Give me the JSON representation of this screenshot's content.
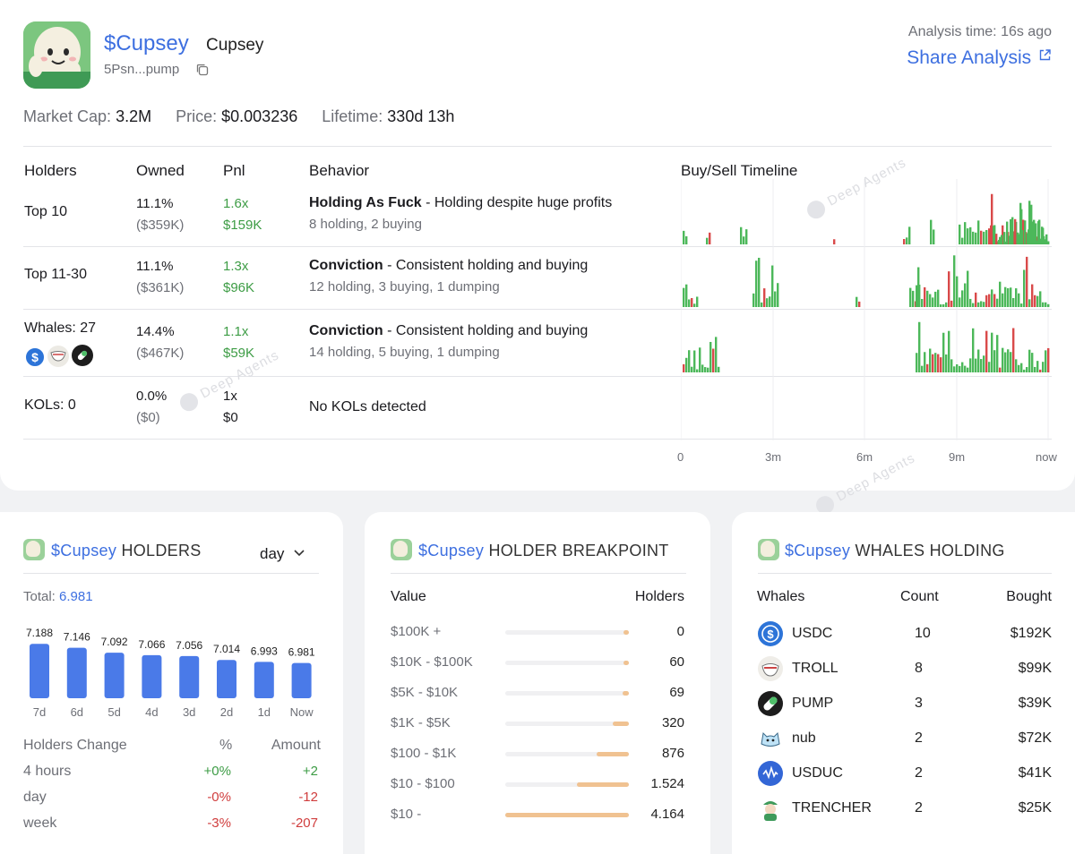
{
  "header": {
    "ticker": "$Cupsey",
    "name": "Cupsey",
    "address": "5Psn...pump",
    "analysis_label": "Analysis time: 16s ago",
    "share_label": "Share Analysis"
  },
  "stats": {
    "market_cap_label": "Market Cap:",
    "market_cap": "3.2M",
    "price_label": "Price:",
    "price": "$0.003236",
    "lifetime_label": "Lifetime:",
    "lifetime": "330d 13h"
  },
  "table": {
    "headers": [
      "Holders",
      "Owned",
      "Pnl",
      "Behavior",
      "Buy/Sell Timeline"
    ],
    "rows": [
      {
        "holders": "Top 10",
        "owned_pct": "11.1%",
        "owned_usd": "($359K)",
        "pnl_x": "1.6x",
        "pnl_usd": "$159K",
        "behavior_title": "Holding As Fuck",
        "behavior_desc": " - Holding despite huge profits",
        "behavior_sub": "8 holding, 2 buying"
      },
      {
        "holders": "Top 11-30",
        "owned_pct": "11.1%",
        "owned_usd": "($361K)",
        "pnl_x": "1.3x",
        "pnl_usd": "$96K",
        "behavior_title": "Conviction",
        "behavior_desc": " - Consistent holding and buying",
        "behavior_sub": "12 holding, 3 buying, 1 dumping"
      },
      {
        "holders": "Whales: 27",
        "owned_pct": "14.4%",
        "owned_usd": "($467K)",
        "pnl_x": "1.1x",
        "pnl_usd": "$59K",
        "behavior_title": "Conviction",
        "behavior_desc": " - Consistent holding and buying",
        "behavior_sub": "14 holding, 5 buying, 1 dumping"
      },
      {
        "holders": "KOLs: 0",
        "owned_pct": "0.0%",
        "owned_usd": "($0)",
        "pnl_x": "1x",
        "pnl_usd": "$0",
        "behavior_title": "",
        "behavior_desc": "No KOLs detected",
        "behavior_sub": ""
      }
    ],
    "timeline_ticks": [
      "0",
      "3m",
      "6m",
      "9m",
      "now"
    ]
  },
  "watermark": "Deep Agents",
  "holders_card": {
    "ticker": "$Cupsey",
    "title": " HOLDERS",
    "period": "day",
    "total_label": "Total:",
    "total": "6.981",
    "change_headers": [
      "Holders Change",
      "%",
      "Amount"
    ],
    "changes": [
      {
        "period": "4 hours",
        "pct": "+0%",
        "amount": "+2",
        "dir": "up"
      },
      {
        "period": "day",
        "pct": "-0%",
        "amount": "-12",
        "dir": "down"
      },
      {
        "period": "week",
        "pct": "-3%",
        "amount": "-207",
        "dir": "down"
      }
    ]
  },
  "breakpoint_card": {
    "ticker": "$Cupsey",
    "title": " HOLDER BREAKPOINT",
    "col_value": "Value",
    "col_holders": "Holders",
    "rows": [
      {
        "range": "$100K +",
        "holders": "0",
        "fill": 0.02
      },
      {
        "range": "$10K - $100K",
        "holders": "60",
        "fill": 0.04
      },
      {
        "range": "$5K - $10K",
        "holders": "69",
        "fill": 0.05
      },
      {
        "range": "$1K - $5K",
        "holders": "320",
        "fill": 0.13
      },
      {
        "range": "$100 - $1K",
        "holders": "876",
        "fill": 0.26
      },
      {
        "range": "$10 - $100",
        "holders": "1.524",
        "fill": 0.42
      },
      {
        "range": "$10 -",
        "holders": "4.164",
        "fill": 1.0
      }
    ]
  },
  "whales_card": {
    "ticker": "$Cupsey",
    "title": " WHALES HOLDING",
    "headers": [
      "Whales",
      "Count",
      "Bought"
    ],
    "rows": [
      {
        "name": "USDC",
        "count": "10",
        "bought": "$192K",
        "icon": "usdc-icon"
      },
      {
        "name": "TROLL",
        "count": "8",
        "bought": "$99K",
        "icon": "troll-icon"
      },
      {
        "name": "PUMP",
        "count": "3",
        "bought": "$39K",
        "icon": "pump-icon"
      },
      {
        "name": "nub",
        "count": "2",
        "bought": "$72K",
        "icon": "nub-icon"
      },
      {
        "name": "USDUC",
        "count": "2",
        "bought": "$41K",
        "icon": "usduc-icon"
      },
      {
        "name": "TRENCHER",
        "count": "2",
        "bought": "$25K",
        "icon": "trencher-icon"
      }
    ]
  },
  "colors": {
    "accent": "#3d6fe0",
    "buy": "#4cb85a",
    "sell": "#d94a4a",
    "bar": "#4a7ae8",
    "breakpoint": "#f0c291"
  },
  "chart_data": {
    "type": "bar",
    "categories": [
      "7d",
      "6d",
      "5d",
      "4d",
      "3d",
      "2d",
      "1d",
      "Now"
    ],
    "values": [
      7188,
      7146,
      7092,
      7066,
      7056,
      7014,
      6993,
      6981
    ],
    "labels": [
      "7.188",
      "7.146",
      "7.092",
      "7.066",
      "7.056",
      "7.014",
      "6.993",
      "6.981"
    ],
    "ylim": [
      6600,
      7200
    ]
  }
}
